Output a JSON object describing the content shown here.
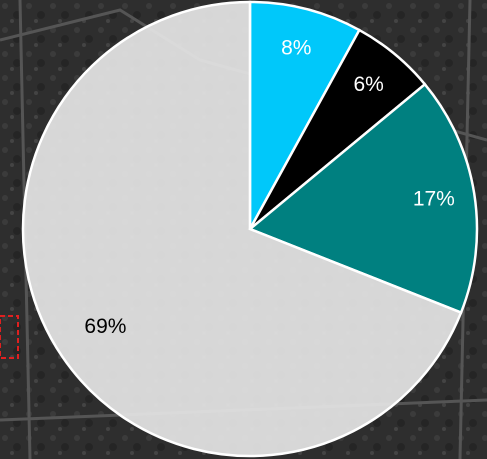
{
  "chart_data": {
    "type": "pie",
    "categories": [
      null,
      null,
      null,
      null
    ],
    "values": [
      8,
      6,
      17,
      69
    ],
    "value_labels": [
      "8%",
      "6%",
      "17%",
      "69%"
    ],
    "colors": [
      "#00c8fa",
      "#000000",
      "#008080",
      "#e4e4e4"
    ]
  }
}
